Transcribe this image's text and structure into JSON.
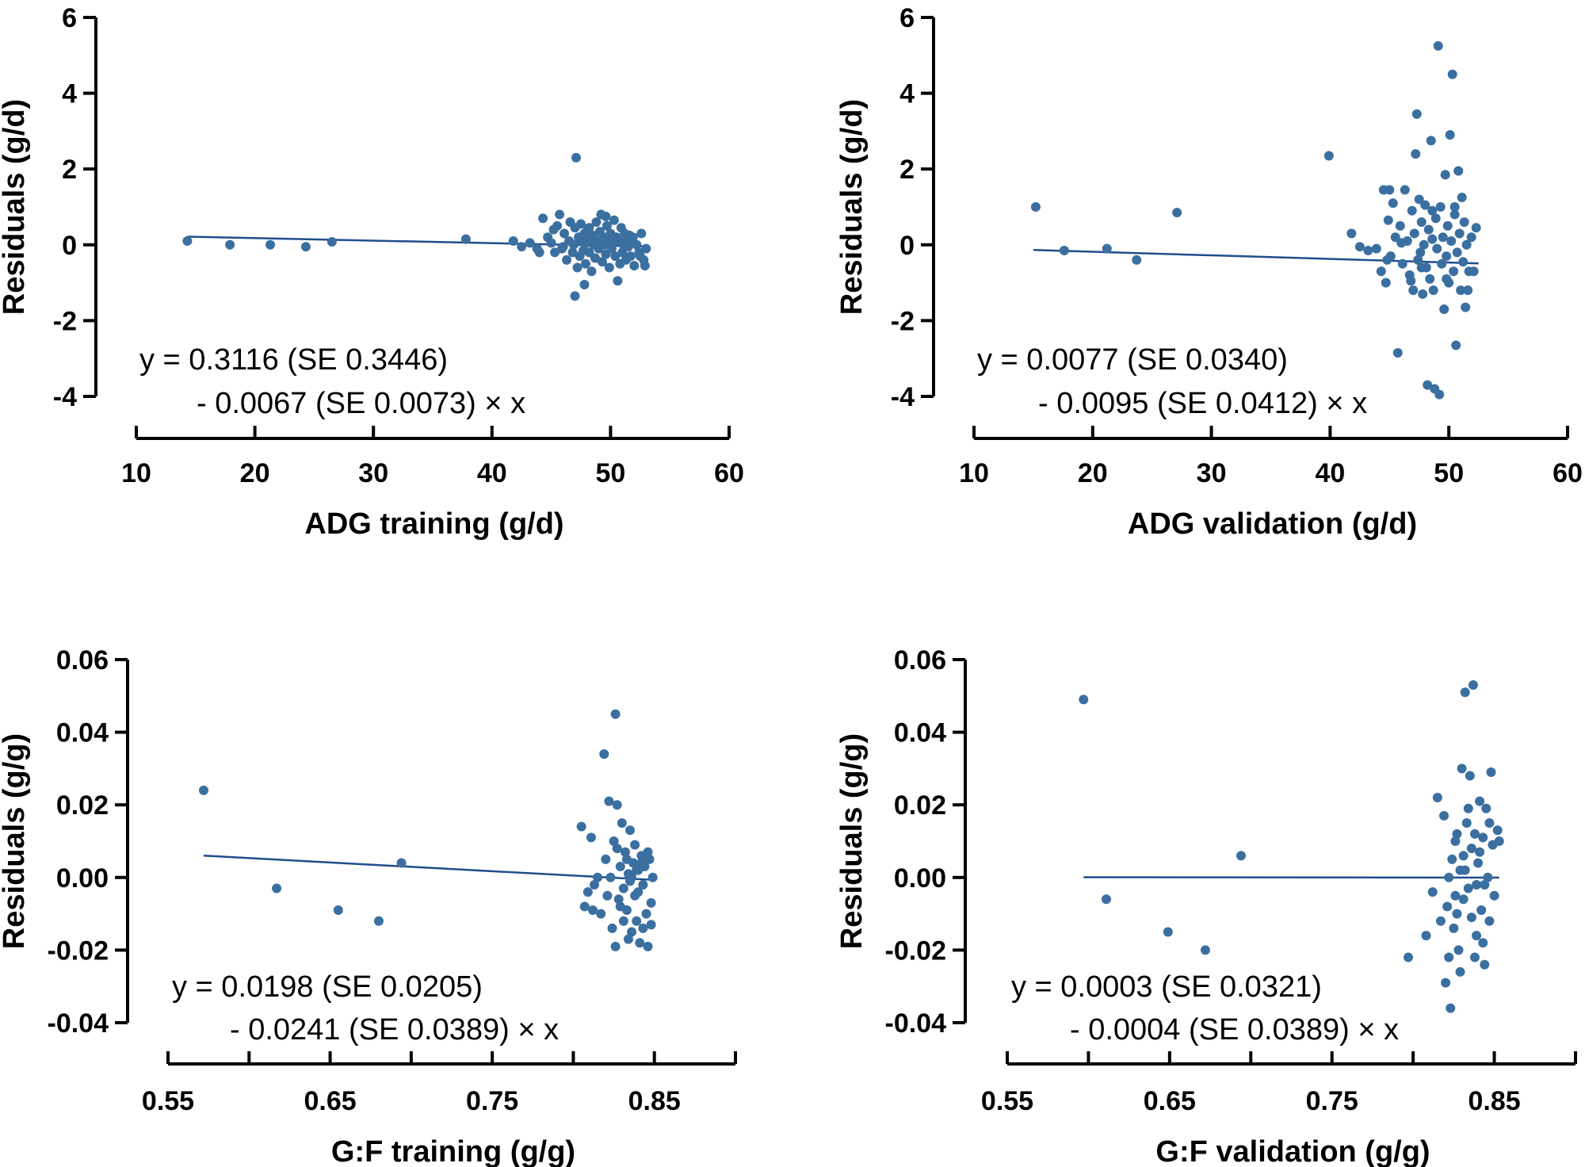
{
  "colors": {
    "point": "#3B6FA0",
    "fit_line": "#1F4E8C",
    "axis": "#000000"
  },
  "chart_data": [
    {
      "type": "scatter",
      "panel": "top-left",
      "xlabel": "ADG training (g/d)",
      "ylabel": "Residuals (g/d)",
      "xlim": [
        10,
        60
      ],
      "ylim": [
        -4,
        6
      ],
      "xticks": [
        10,
        20,
        30,
        40,
        50,
        60
      ],
      "yticks": [
        -4,
        -2,
        0,
        2,
        4,
        6
      ],
      "xtick_labels": [
        "10",
        "20",
        "30",
        "40",
        "50",
        "60"
      ],
      "ytick_labels": [
        "-4",
        "-2",
        "0",
        "2",
        "4",
        "6"
      ],
      "equation_line1": "y = 0.3116 (SE 0.3446)",
      "equation_line2": "- 0.0067 (SE 0.0073) × x",
      "fit": {
        "intercept": 0.3116,
        "slope": -0.0067,
        "x_range": [
          14.3,
          53
        ]
      },
      "points": [
        [
          14.3,
          0.1
        ],
        [
          17.9,
          0.0
        ],
        [
          21.3,
          0.0
        ],
        [
          24.3,
          -0.05
        ],
        [
          26.5,
          0.08
        ],
        [
          37.8,
          0.15
        ],
        [
          41.8,
          0.1
        ],
        [
          42.5,
          -0.05
        ],
        [
          43.2,
          0.05
        ],
        [
          43.8,
          -0.1
        ],
        [
          44.3,
          0.7
        ],
        [
          44.7,
          0.2
        ],
        [
          45.0,
          0.05
        ],
        [
          45.3,
          -0.2
        ],
        [
          45.5,
          0.5
        ],
        [
          45.7,
          0.8
        ],
        [
          45.9,
          -0.1
        ],
        [
          46.1,
          0.3
        ],
        [
          46.3,
          -0.4
        ],
        [
          46.5,
          0.1
        ],
        [
          46.6,
          0.6
        ],
        [
          46.8,
          -0.2
        ],
        [
          46.9,
          0.0
        ],
        [
          47.0,
          0.45
        ],
        [
          47.1,
          2.3
        ],
        [
          47.2,
          -0.6
        ],
        [
          47.3,
          0.2
        ],
        [
          47.4,
          -0.3
        ],
        [
          47.5,
          0.55
        ],
        [
          47.6,
          0.1
        ],
        [
          47.7,
          -0.15
        ],
        [
          47.8,
          0.3
        ],
        [
          47.9,
          -0.5
        ],
        [
          48.0,
          0.05
        ],
        [
          48.1,
          0.4
        ],
        [
          48.2,
          -0.2
        ],
        [
          48.3,
          0.15
        ],
        [
          48.4,
          -0.7
        ],
        [
          48.5,
          0.25
        ],
        [
          48.6,
          0.0
        ],
        [
          48.7,
          -0.35
        ],
        [
          48.8,
          0.6
        ],
        [
          48.9,
          0.1
        ],
        [
          49.0,
          -0.1
        ],
        [
          49.1,
          0.35
        ],
        [
          49.2,
          0.8
        ],
        [
          49.3,
          -0.45
        ],
        [
          49.4,
          0.2
        ],
        [
          49.5,
          0.0
        ],
        [
          49.6,
          -0.25
        ],
        [
          49.7,
          0.5
        ],
        [
          49.8,
          0.15
        ],
        [
          49.9,
          -0.6
        ],
        [
          50.0,
          0.3
        ],
        [
          50.1,
          -0.1
        ],
        [
          50.2,
          0.05
        ],
        [
          50.3,
          0.65
        ],
        [
          50.4,
          -0.3
        ],
        [
          50.5,
          0.2
        ],
        [
          50.6,
          -0.95
        ],
        [
          50.7,
          0.1
        ],
        [
          50.8,
          -0.5
        ],
        [
          50.9,
          0.45
        ],
        [
          51.0,
          -0.2
        ],
        [
          51.1,
          0.0
        ],
        [
          51.2,
          0.3
        ],
        [
          51.3,
          -0.4
        ],
        [
          51.4,
          0.15
        ],
        [
          51.5,
          -0.05
        ],
        [
          51.6,
          0.25
        ],
        [
          51.7,
          -0.3
        ],
        [
          51.8,
          0.1
        ],
        [
          52.0,
          -0.55
        ],
        [
          52.2,
          0.0
        ],
        [
          52.4,
          -0.2
        ],
        [
          52.6,
          0.3
        ],
        [
          52.8,
          -0.4
        ],
        [
          53.0,
          -0.1
        ],
        [
          47.0,
          -1.35
        ],
        [
          47.8,
          -1.05
        ],
        [
          45.2,
          0.4
        ],
        [
          46.0,
          -0.05
        ],
        [
          44.0,
          -0.2
        ],
        [
          49.6,
          0.75
        ],
        [
          52.9,
          -0.55
        ],
        [
          52.5,
          -0.3
        ],
        [
          51.9,
          0.2
        ],
        [
          48.2,
          0.45
        ]
      ]
    },
    {
      "type": "scatter",
      "panel": "top-right",
      "xlabel": "ADG validation (g/d)",
      "ylabel": "Residuals (g/d)",
      "xlim": [
        10,
        60
      ],
      "ylim": [
        -4,
        6
      ],
      "xticks": [
        10,
        20,
        30,
        40,
        50,
        60
      ],
      "yticks": [
        -4,
        -2,
        0,
        2,
        4,
        6
      ],
      "xtick_labels": [
        "10",
        "20",
        "30",
        "40",
        "50",
        "60"
      ],
      "ytick_labels": [
        "-4",
        "-2",
        "0",
        "2",
        "4",
        "6"
      ],
      "equation_line1": "y = 0.0077 (SE 0.0340)",
      "equation_line2": "- 0.0095 (SE 0.0412) × x",
      "fit": {
        "intercept": 0.0077,
        "slope": -0.0095,
        "x_range": [
          15,
          52.5
        ]
      },
      "points": [
        [
          15.2,
          1.0
        ],
        [
          17.6,
          -0.15
        ],
        [
          21.2,
          -0.1
        ],
        [
          23.7,
          -0.4
        ],
        [
          27.1,
          0.85
        ],
        [
          39.9,
          2.35
        ],
        [
          41.8,
          0.3
        ],
        [
          42.5,
          -0.05
        ],
        [
          43.2,
          -0.15
        ],
        [
          43.9,
          -0.1
        ],
        [
          44.3,
          -0.7
        ],
        [
          44.5,
          1.45
        ],
        [
          44.7,
          -1.0
        ],
        [
          44.9,
          0.65
        ],
        [
          45.1,
          -0.3
        ],
        [
          45.3,
          1.1
        ],
        [
          45.5,
          0.2
        ],
        [
          45.7,
          -2.85
        ],
        [
          45.9,
          0.5
        ],
        [
          46.1,
          -0.5
        ],
        [
          46.3,
          1.45
        ],
        [
          46.5,
          0.1
        ],
        [
          46.7,
          -0.8
        ],
        [
          46.9,
          0.9
        ],
        [
          47.0,
          -1.2
        ],
        [
          47.1,
          0.3
        ],
        [
          47.2,
          2.4
        ],
        [
          47.3,
          3.45
        ],
        [
          47.4,
          -0.4
        ],
        [
          47.5,
          1.2
        ],
        [
          47.6,
          -0.2
        ],
        [
          47.7,
          0.6
        ],
        [
          47.8,
          -1.3
        ],
        [
          47.9,
          0.0
        ],
        [
          48.0,
          1.05
        ],
        [
          48.1,
          -0.6
        ],
        [
          48.2,
          -3.7
        ],
        [
          48.3,
          0.4
        ],
        [
          48.4,
          -0.9
        ],
        [
          48.5,
          2.75
        ],
        [
          48.6,
          0.15
        ],
        [
          48.7,
          -1.2
        ],
        [
          48.8,
          -3.8
        ],
        [
          48.9,
          0.7
        ],
        [
          49.0,
          -0.1
        ],
        [
          49.1,
          5.25
        ],
        [
          49.2,
          -3.95
        ],
        [
          49.3,
          1.0
        ],
        [
          49.4,
          -0.5
        ],
        [
          49.5,
          0.2
        ],
        [
          49.6,
          -1.7
        ],
        [
          49.7,
          1.85
        ],
        [
          49.8,
          -0.3
        ],
        [
          49.9,
          0.5
        ],
        [
          50.0,
          -1.0
        ],
        [
          50.1,
          2.9
        ],
        [
          50.2,
          0.1
        ],
        [
          50.3,
          4.5
        ],
        [
          50.4,
          -0.7
        ],
        [
          50.5,
          0.8
        ],
        [
          50.6,
          -2.65
        ],
        [
          50.7,
          -0.2
        ],
        [
          50.8,
          1.95
        ],
        [
          50.9,
          0.3
        ],
        [
          51.0,
          -1.2
        ],
        [
          51.1,
          1.25
        ],
        [
          51.2,
          -0.45
        ],
        [
          51.3,
          0.6
        ],
        [
          51.4,
          -1.65
        ],
        [
          51.5,
          0.0
        ],
        [
          51.7,
          -0.7
        ],
        [
          51.9,
          0.2
        ],
        [
          52.1,
          -0.7
        ],
        [
          52.3,
          0.45
        ],
        [
          46.0,
          0.05
        ],
        [
          48.6,
          0.9
        ],
        [
          47.7,
          -0.6
        ],
        [
          50.5,
          1.0
        ],
        [
          45.0,
          1.45
        ],
        [
          49.8,
          -0.9
        ],
        [
          51.6,
          -1.2
        ],
        [
          46.8,
          -0.95
        ],
        [
          44.8,
          -0.4
        ]
      ]
    },
    {
      "type": "scatter",
      "panel": "bottom-left",
      "xlabel": "G:F training (g/g)",
      "ylabel": "Residuals (g/g)",
      "xlim": [
        0.55,
        0.9
      ],
      "ylim": [
        -0.04,
        0.06
      ],
      "xticks": [
        0.55,
        0.6,
        0.65,
        0.7,
        0.75,
        0.8,
        0.85,
        0.9
      ],
      "yticks": [
        -0.04,
        -0.02,
        0.0,
        0.02,
        0.04,
        0.06
      ],
      "xtick_labels": [
        "0.55",
        "",
        "0.65",
        "",
        "0.75",
        "",
        "0.85",
        ""
      ],
      "ytick_labels": [
        "-0.04",
        "-0.02",
        "0.00",
        "0.02",
        "0.04",
        "0.06"
      ],
      "equation_line1": "y = 0.0198 (SE 0.0205)",
      "equation_line2": "- 0.0241 (SE 0.0389) × x",
      "fit": {
        "intercept": 0.0198,
        "slope": -0.0241,
        "x_range": [
          0.572,
          0.85
        ]
      },
      "points": [
        [
          0.572,
          0.024
        ],
        [
          0.617,
          -0.003
        ],
        [
          0.655,
          -0.009
        ],
        [
          0.68,
          -0.012
        ],
        [
          0.694,
          0.004
        ],
        [
          0.805,
          0.014
        ],
        [
          0.807,
          -0.008
        ],
        [
          0.809,
          -0.004
        ],
        [
          0.811,
          0.011
        ],
        [
          0.812,
          -0.009
        ],
        [
          0.813,
          -0.002
        ],
        [
          0.815,
          0.0
        ],
        [
          0.817,
          -0.01
        ],
        [
          0.819,
          0.034
        ],
        [
          0.82,
          0.005
        ],
        [
          0.821,
          -0.005
        ],
        [
          0.822,
          0.021
        ],
        [
          0.823,
          0.0
        ],
        [
          0.824,
          -0.014
        ],
        [
          0.825,
          0.01
        ],
        [
          0.826,
          0.045
        ],
        [
          0.826,
          -0.019
        ],
        [
          0.827,
          0.02
        ],
        [
          0.828,
          -0.006
        ],
        [
          0.829,
          0.003
        ],
        [
          0.83,
          0.015
        ],
        [
          0.831,
          -0.003
        ],
        [
          0.832,
          0.007
        ],
        [
          0.833,
          -0.009
        ],
        [
          0.834,
          0.001
        ],
        [
          0.835,
          0.013
        ],
        [
          0.836,
          -0.015
        ],
        [
          0.837,
          0.004
        ],
        [
          0.838,
          -0.005
        ],
        [
          0.838,
          0.009
        ],
        [
          0.839,
          -0.012
        ],
        [
          0.84,
          0.002
        ],
        [
          0.841,
          -0.018
        ],
        [
          0.842,
          0.006
        ],
        [
          0.843,
          -0.002
        ],
        [
          0.844,
          0.003
        ],
        [
          0.845,
          -0.01
        ],
        [
          0.846,
          -0.019
        ],
        [
          0.847,
          0.005
        ],
        [
          0.848,
          -0.007
        ],
        [
          0.849,
          0.0
        ],
        [
          0.829,
          -0.008
        ],
        [
          0.833,
          0.005
        ],
        [
          0.836,
          0.0
        ],
        [
          0.84,
          -0.004
        ],
        [
          0.843,
          -0.014
        ],
        [
          0.846,
          0.007
        ],
        [
          0.831,
          -0.012
        ],
        [
          0.827,
          0.008
        ],
        [
          0.834,
          -0.017
        ],
        [
          0.839,
          0.002
        ],
        [
          0.835,
          -0.001
        ],
        [
          0.842,
          0.004
        ],
        [
          0.848,
          -0.013
        ]
      ]
    },
    {
      "type": "scatter",
      "panel": "bottom-right",
      "xlabel": "G:F validation (g/g)",
      "ylabel": "Residuals (g/g)",
      "xlim": [
        0.55,
        0.9
      ],
      "ylim": [
        -0.04,
        0.06
      ],
      "xticks": [
        0.55,
        0.6,
        0.65,
        0.7,
        0.75,
        0.8,
        0.85,
        0.9
      ],
      "yticks": [
        -0.04,
        -0.02,
        0.0,
        0.02,
        0.04,
        0.06
      ],
      "xtick_labels": [
        "0.55",
        "",
        "0.65",
        "",
        "0.75",
        "",
        "0.85",
        ""
      ],
      "ytick_labels": [
        "-0.04",
        "-0.02",
        "0.00",
        "0.02",
        "0.04",
        "0.06"
      ],
      "equation_line1": "y = 0.0003 (SE 0.0321)",
      "equation_line2": "- 0.0004 (SE 0.0389) × x",
      "fit": {
        "intercept": 0.0003,
        "slope": -0.0004,
        "x_range": [
          0.597,
          0.853
        ]
      },
      "points": [
        [
          0.597,
          0.049
        ],
        [
          0.611,
          -0.006
        ],
        [
          0.649,
          -0.015
        ],
        [
          0.672,
          -0.02
        ],
        [
          0.694,
          0.006
        ],
        [
          0.797,
          -0.022
        ],
        [
          0.808,
          -0.016
        ],
        [
          0.812,
          -0.004
        ],
        [
          0.815,
          0.022
        ],
        [
          0.817,
          -0.012
        ],
        [
          0.819,
          0.017
        ],
        [
          0.82,
          -0.029
        ],
        [
          0.821,
          -0.008
        ],
        [
          0.822,
          0.0
        ],
        [
          0.823,
          -0.036
        ],
        [
          0.824,
          0.005
        ],
        [
          0.825,
          -0.014
        ],
        [
          0.826,
          0.01
        ],
        [
          0.827,
          -0.01
        ],
        [
          0.828,
          -0.02
        ],
        [
          0.829,
          0.002
        ],
        [
          0.83,
          0.03
        ],
        [
          0.831,
          -0.006
        ],
        [
          0.832,
          0.051
        ],
        [
          0.833,
          0.015
        ],
        [
          0.834,
          -0.003
        ],
        [
          0.835,
          0.028
        ],
        [
          0.836,
          0.008
        ],
        [
          0.837,
          0.053
        ],
        [
          0.838,
          -0.022
        ],
        [
          0.838,
          0.012
        ],
        [
          0.839,
          -0.016
        ],
        [
          0.84,
          0.004
        ],
        [
          0.841,
          0.021
        ],
        [
          0.842,
          -0.009
        ],
        [
          0.843,
          0.011
        ],
        [
          0.844,
          -0.024
        ],
        [
          0.845,
          0.019
        ],
        [
          0.846,
          0.0
        ],
        [
          0.847,
          -0.012
        ],
        [
          0.848,
          0.029
        ],
        [
          0.849,
          0.009
        ],
        [
          0.85,
          -0.005
        ],
        [
          0.852,
          0.013
        ],
        [
          0.853,
          0.01
        ],
        [
          0.826,
          -0.005
        ],
        [
          0.832,
          0.002
        ],
        [
          0.836,
          -0.011
        ],
        [
          0.841,
          0.007
        ],
        [
          0.844,
          -0.002
        ],
        [
          0.829,
          -0.026
        ],
        [
          0.834,
          0.019
        ],
        [
          0.839,
          -0.002
        ],
        [
          0.831,
          0.006
        ],
        [
          0.843,
          -0.018
        ],
        [
          0.847,
          0.015
        ],
        [
          0.827,
          0.012
        ],
        [
          0.822,
          -0.022
        ]
      ]
    }
  ]
}
